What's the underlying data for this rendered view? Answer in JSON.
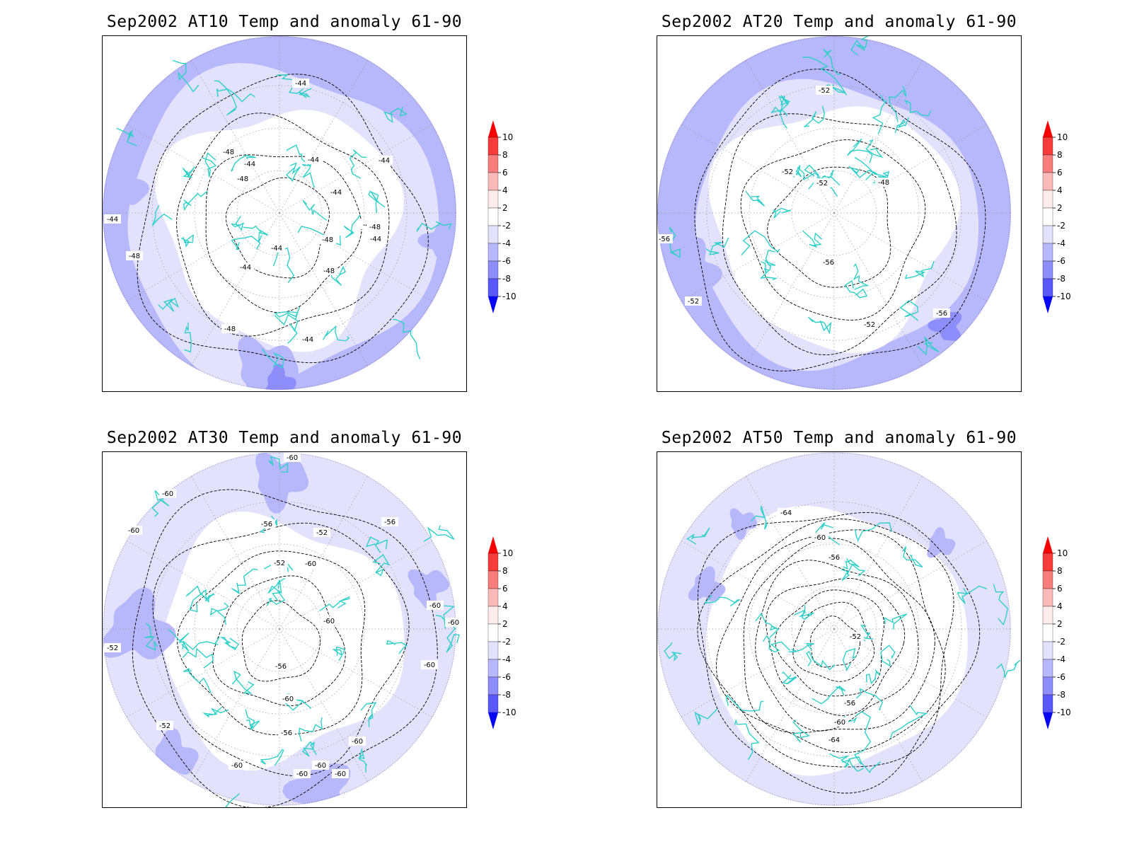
{
  "panels": [
    {
      "title": "Sep2002 AT10 Temp and anomaly 61-90",
      "contour_labels": [
        "-44",
        "-48",
        "-44",
        "-44",
        "-48",
        "-44",
        "-44",
        "-44",
        "-48",
        "-44",
        "-48",
        "-44",
        "-44",
        "-48",
        "-44",
        "-48",
        "-48",
        "-44"
      ]
    },
    {
      "title": "Sep2002 AT20 Temp and anomaly 61-90",
      "contour_labels": [
        "-52",
        "-52",
        "-52",
        "-48",
        "-56",
        "-56",
        "-52",
        "-52",
        "-56"
      ]
    },
    {
      "title": "Sep2002 AT30 Temp and anomaly 61-90",
      "contour_labels": [
        "-60",
        "-60",
        "-60",
        "-56",
        "-56",
        "-52",
        "-52",
        "-60",
        "-60",
        "-60",
        "-60",
        "-52",
        "-60",
        "-56",
        "-52",
        "-60",
        "-56",
        "-60",
        "-60",
        "-60",
        "-60",
        "-60"
      ]
    },
    {
      "title": "Sep2002 AT50 Temp and anomaly 61-90",
      "contour_labels": [
        "-64",
        "-60",
        "-56",
        "-52",
        "-56",
        "-60",
        "-64"
      ]
    }
  ],
  "colorbar": {
    "labels": [
      "10",
      "8",
      "6",
      "4",
      "2",
      "-2",
      "-4",
      "-6",
      "-8",
      "-10"
    ],
    "colors": [
      "#fb0000",
      "#f83c3c",
      "#fa7d7d",
      "#fcb9b9",
      "#feecec",
      "#ffffff",
      "#e2e2fc",
      "#b7b7fb",
      "#8d8dfb",
      "#5959fb",
      "#0404fb"
    ]
  },
  "style": {
    "coastline_color": "#30d0c8",
    "contour_color": "#000000"
  }
}
